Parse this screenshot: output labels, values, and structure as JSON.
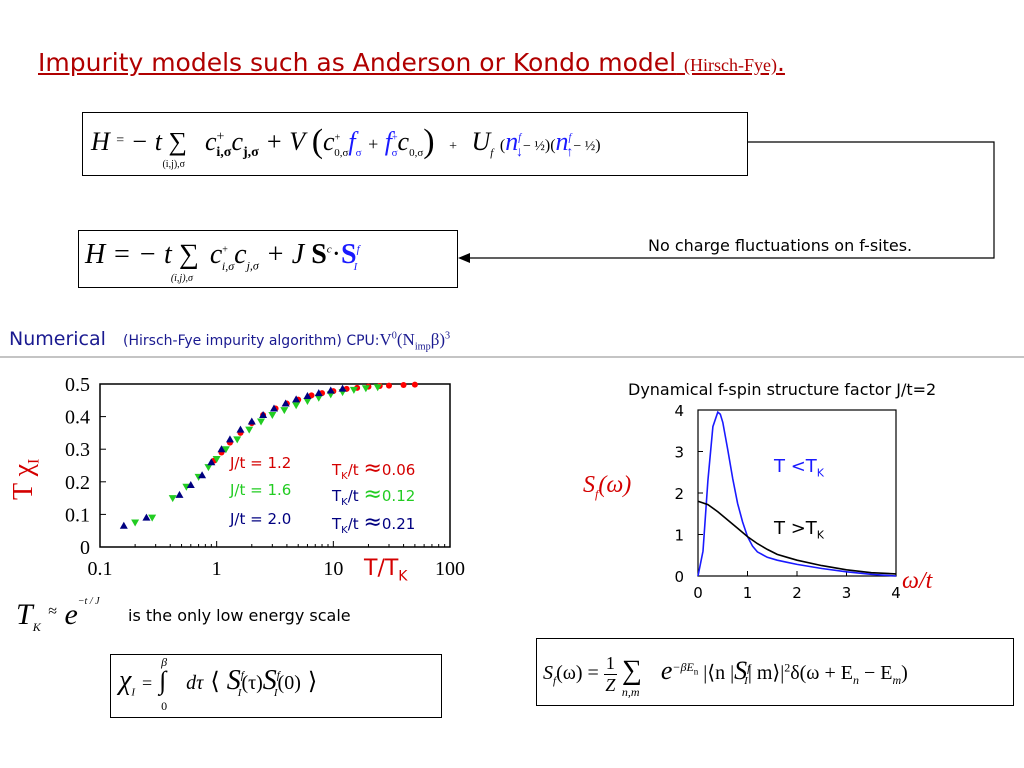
{
  "title": {
    "main": "Impurity models such as Anderson or  Kondo model",
    "small": "(Hirsch-Fye)",
    "dot": "."
  },
  "equations": {
    "anderson": {
      "H": "H",
      "eq": "=",
      "minus_t": "− t",
      "sum": "∑",
      "sum_sub": "(i,j),σ",
      "c_i": "c",
      "c_i_sup": "+",
      "c_i_sub": "i,σ",
      "c_j": "c",
      "c_j_sub": "j,σ",
      "plus_V": "+ V",
      "c0": "c",
      "c0_sup": "+",
      "c0_sub": "0,σ",
      "f": "f",
      "f_sub": "σ",
      "plus": "+",
      "f2": "f",
      "f2_sup": "+",
      "f2_sub": "σ",
      "c02": "c",
      "c02_sub": "0,σ",
      "plus2": "+",
      "U": "U",
      "U_sub": "f",
      "n_down": "n",
      "n_down_sup": "f",
      "n_down_sub": "↓",
      "half1": "− ½",
      "n_up": "n",
      "n_up_sup": "f",
      "n_up_sub": "↑",
      "half2": "− ½"
    },
    "kondo": {
      "H": "H",
      "eq": "= − t",
      "sum": "∑",
      "sum_sub": "(i,j),σ",
      "c": "c",
      "c_sup": "+",
      "c_sub": "i,σ",
      "c2": "c",
      "c2_sub": "j,σ",
      "plus_J": "+ J",
      "S": "S",
      "S_sup": "c",
      "dot": "·",
      "S2": "S",
      "S2_sup": "f",
      "S2_sub": "I"
    },
    "tk": {
      "T": "T",
      "T_sub": "K",
      "approx": "≈",
      "e": "e",
      "exp": "−t / J"
    },
    "chi": {
      "chi": "χ",
      "chi_sub": "I",
      "eq": "=",
      "upper": "β",
      "lower": "0",
      "int": "∫",
      "dtau": "dτ",
      "lang": "⟨",
      "S1": "S",
      "S1_sup": "f",
      "S1_sub": "I",
      "tau": "(τ)",
      "S2": "S",
      "S2_sup": "f",
      "S2_sub": "I",
      "zero": "(0)",
      "rang": "⟩"
    },
    "sf": {
      "S": "S",
      "S_sub": "f",
      "omega": "(ω)",
      "eq": "=",
      "num": "1",
      "den": "Z",
      "sum": "∑",
      "sum_sub": "n,m",
      "e": "e",
      "exp": "−βE",
      "exp_sub": "n",
      "bra": "|⟨n |",
      "Sop": "S",
      "Sop_sup": "f",
      "Sop_sub": "I",
      "ket": "| m⟩|",
      "sq": "2",
      "delta": "δ(ω + E",
      "delta_sub1": "n",
      "minus": " − E",
      "delta_sub2": "m",
      "close": ")"
    }
  },
  "annotations": {
    "no_charge": "No charge fluctuations on f-sites.",
    "numerical_label": "Numerical",
    "numerical_detail": "(Hirsch-Fye impurity algorithm) CPU:",
    "cpu": "V",
    "cpu_sup": "0",
    "cpu_paren": "(N",
    "cpu_sub": "imp",
    "cpu_beta": "β)",
    "cpu_pow": "3",
    "low_energy": "is the only low energy scale"
  },
  "left_chart_labels": {
    "ylabel": "T χ",
    "ylabel_sub": "I",
    "xlabel": "T/T",
    "xlabel_sub": "K",
    "legend": [
      {
        "j": "J/t = 1.2",
        "tk": "T",
        "tk_sub": "K",
        "tk_rest": "/t",
        "approx": "≈",
        "val": "0.06",
        "color": "#d40000"
      },
      {
        "j": "J/t = 1.6",
        "tk": "T",
        "tk_sub": "K",
        "tk_rest": "/t",
        "approx": "≈",
        "val": "0.12",
        "color": "#22cc22"
      },
      {
        "j": "J/t = 2.0",
        "tk": "T",
        "tk_sub": "K",
        "tk_rest": "/t",
        "approx": "≈",
        "val": "0.21",
        "color": "#000080"
      }
    ]
  },
  "right_chart_labels": {
    "title": "Dynamical f-spin structure factor J/t=2",
    "ylabel": "S",
    "ylabel_sub": "f",
    "ylabel_rest": "(ω)",
    "xlabel": "ω/t",
    "series_low": "T <T",
    "series_low_sub": "K",
    "series_high": "T >T",
    "series_high_sub": "K"
  },
  "chart_data": [
    {
      "type": "scatter",
      "xlabel": "T/TK",
      "ylabel": "T χI",
      "xscale": "log",
      "xlim": [
        0.1,
        100
      ],
      "ylim": [
        0,
        0.5
      ],
      "xticks": [
        "0.1",
        "1",
        "10",
        "100"
      ],
      "yticks": [
        "0",
        "0.1",
        "0.2",
        "0.3",
        "0.4",
        "0.5"
      ],
      "series": [
        {
          "name": "J/t = 1.2",
          "color": "#ff0000",
          "marker": "circle",
          "x": [
            0.95,
            1.1,
            1.3,
            1.6,
            2.0,
            2.5,
            3.2,
            4.0,
            5.0,
            6.5,
            8.0,
            10,
            13,
            16,
            20,
            25,
            30,
            40,
            50
          ],
          "y": [
            0.265,
            0.29,
            0.32,
            0.35,
            0.38,
            0.405,
            0.425,
            0.44,
            0.452,
            0.465,
            0.472,
            0.478,
            0.485,
            0.488,
            0.492,
            0.494,
            0.495,
            0.497,
            0.498
          ]
        },
        {
          "name": "J/t = 1.6",
          "color": "#22cc22",
          "marker": "triangle-down",
          "x": [
            0.2,
            0.28,
            0.42,
            0.55,
            0.7,
            0.85,
            1.0,
            1.2,
            1.5,
            1.9,
            2.4,
            3.0,
            3.8,
            4.8,
            6.0,
            7.5,
            9.5,
            12,
            15,
            19,
            24
          ],
          "y": [
            0.075,
            0.09,
            0.15,
            0.185,
            0.215,
            0.245,
            0.27,
            0.3,
            0.33,
            0.36,
            0.385,
            0.405,
            0.42,
            0.435,
            0.448,
            0.458,
            0.468,
            0.475,
            0.482,
            0.487,
            0.49
          ]
        },
        {
          "name": "J/t = 2.0",
          "color": "#000080",
          "marker": "triangle-up",
          "x": [
            0.16,
            0.25,
            0.48,
            0.6,
            0.75,
            0.9,
            1.1,
            1.3,
            1.6,
            2.0,
            2.5,
            3.1,
            3.9,
            4.8,
            6.0,
            7.5,
            9.5,
            12
          ],
          "y": [
            0.065,
            0.09,
            0.16,
            0.19,
            0.22,
            0.26,
            0.3,
            0.33,
            0.36,
            0.385,
            0.405,
            0.425,
            0.44,
            0.453,
            0.463,
            0.472,
            0.48,
            0.486
          ]
        }
      ]
    },
    {
      "type": "line",
      "title": "Dynamical f-spin structure factor J/t=2",
      "xlabel": "ω/t",
      "ylabel": "Sf(ω)",
      "xlim": [
        0,
        4
      ],
      "ylim": [
        0,
        4
      ],
      "xticks": [
        "0",
        "1",
        "2",
        "3",
        "4"
      ],
      "yticks": [
        "0",
        "1",
        "2",
        "3",
        "4"
      ],
      "series": [
        {
          "name": "T <TK",
          "color": "#1a1aff",
          "x": [
            0,
            0.1,
            0.2,
            0.3,
            0.4,
            0.45,
            0.5,
            0.6,
            0.7,
            0.8,
            0.9,
            1.0,
            1.1,
            1.2,
            1.4,
            1.6,
            1.8,
            2.0,
            2.5,
            3.0,
            3.5,
            4.0
          ],
          "y": [
            0,
            0.6,
            2.3,
            3.6,
            3.95,
            3.9,
            3.7,
            3.05,
            2.35,
            1.75,
            1.3,
            0.95,
            0.72,
            0.58,
            0.45,
            0.38,
            0.33,
            0.28,
            0.18,
            0.1,
            0.04,
            0
          ]
        },
        {
          "name": "T >TK",
          "color": "#000000",
          "x": [
            0,
            0.2,
            0.4,
            0.6,
            0.8,
            1.0,
            1.2,
            1.4,
            1.6,
            1.8,
            2.0,
            2.5,
            3.0,
            3.5,
            4.0
          ],
          "y": [
            1.8,
            1.72,
            1.55,
            1.35,
            1.15,
            0.95,
            0.78,
            0.64,
            0.52,
            0.45,
            0.38,
            0.25,
            0.15,
            0.08,
            0.05
          ]
        }
      ]
    }
  ]
}
